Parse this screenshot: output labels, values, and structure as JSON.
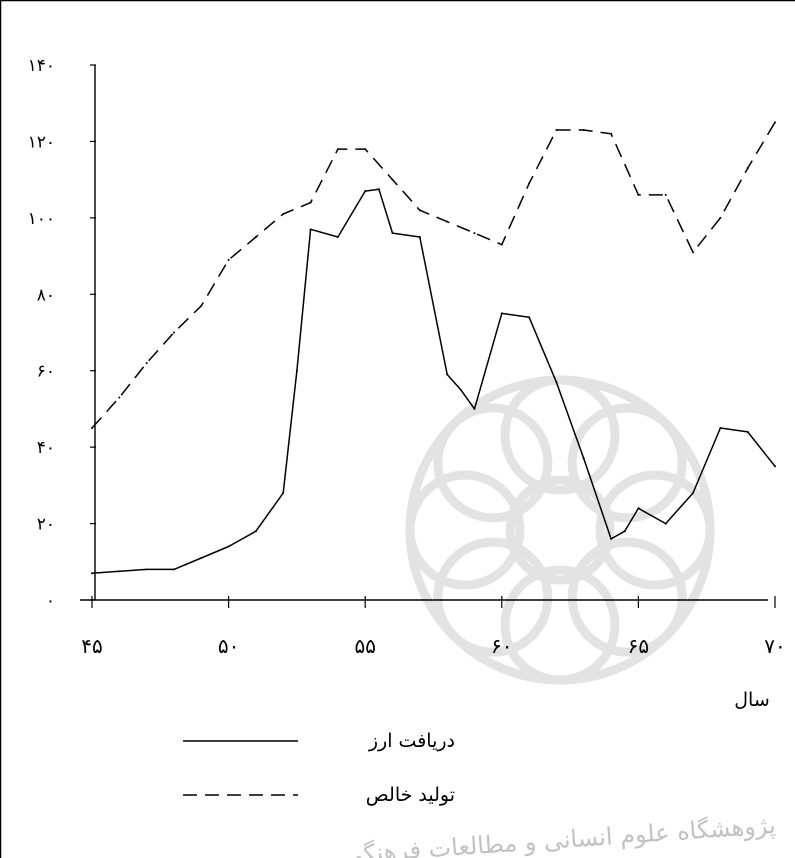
{
  "chart_data": {
    "type": "line",
    "title": "",
    "xlabel": "سال",
    "ylabel": "",
    "xlim": [
      45,
      70
    ],
    "ylim": [
      0,
      140
    ],
    "x_ticks": [
      45,
      50,
      55,
      60,
      65,
      70
    ],
    "x_tick_labels": [
      "۴۵",
      "۵۰",
      "۵۵",
      "۶۰",
      "۶۵",
      "۷۰"
    ],
    "y_ticks": [
      0,
      20,
      40,
      60,
      80,
      100,
      120,
      140
    ],
    "y_tick_labels": [
      "۰",
      "۲۰",
      "۴۰",
      "۶۰",
      "۸۰",
      "۱۰۰",
      "۱۲۰",
      "۱۴۰"
    ],
    "grid": false,
    "legend": "bottom-left",
    "series": [
      {
        "name": "دریافت ارز",
        "style": "solid",
        "x": [
          45,
          46,
          47,
          48,
          49,
          50,
          51,
          52,
          52.5,
          53,
          54,
          55,
          55.5,
          56,
          57,
          58,
          58.5,
          59,
          60,
          61,
          62,
          63,
          64,
          64.5,
          65,
          66,
          67,
          68,
          69,
          70
        ],
        "y": [
          7,
          7.5,
          8,
          8,
          11,
          14,
          18,
          28,
          60,
          97,
          95,
          107,
          107.5,
          96,
          95,
          59,
          55,
          50,
          75,
          74,
          57,
          37,
          16,
          18,
          24,
          20,
          28,
          45,
          44,
          35
        ]
      },
      {
        "name": "تولید خالص",
        "style": "dashed",
        "x": [
          45,
          46,
          47,
          48,
          49,
          50,
          51,
          52,
          53,
          54,
          55,
          56,
          57,
          58,
          59,
          60,
          61,
          62,
          63,
          64,
          65,
          66,
          67,
          68,
          69,
          70
        ],
        "y": [
          45,
          53,
          62,
          70,
          77,
          89,
          95,
          101,
          104,
          118,
          118,
          110,
          102,
          99,
          96,
          93,
          109,
          123,
          123,
          122,
          106,
          106,
          91,
          100,
          113,
          125
        ]
      }
    ]
  },
  "watermark": "پژوهشگاه علوم انسانی و مطالعات فرهنگی"
}
